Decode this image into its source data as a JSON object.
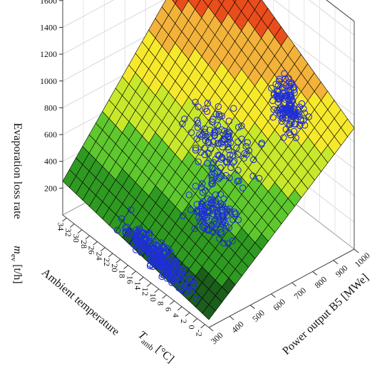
{
  "chart_data": {
    "type": "surface3d",
    "title": "",
    "axes": {
      "z": {
        "label": "Evaporation loss rate",
        "symbol": "m",
        "subscript": "ev",
        "unit": "[t/h]",
        "ticks": [
          200,
          400,
          600,
          800,
          1000,
          1200,
          1400,
          1600
        ],
        "range": [
          0,
          1700
        ]
      },
      "temperature": {
        "label": "Ambient temperature",
        "symbol": "T",
        "subscript": "amb",
        "unit": "[°C]",
        "ticks": [
          -2,
          0,
          2,
          4,
          6,
          8,
          10,
          12,
          14,
          16,
          18,
          20,
          22,
          24,
          26,
          28,
          30,
          32,
          34
        ],
        "range": [
          -3,
          35
        ]
      },
      "power": {
        "label": "Power output  B5 [MWe]",
        "ticks": [
          300,
          400,
          500,
          600,
          700,
          800,
          900,
          1000
        ],
        "range": [
          300,
          1000
        ]
      }
    },
    "surface": {
      "colormap": [
        "#1c5e1c",
        "#2f9a21",
        "#5ec82e",
        "#c7e82b",
        "#f6e92c",
        "#f3b23a",
        "#ea4d1c",
        "#d11312",
        "#8e0a0a"
      ],
      "colorbreaks": [
        0,
        200,
        400,
        600,
        800,
        1000,
        1200,
        1400,
        1600
      ],
      "grid_lines": 22
    },
    "points": {
      "color": "#1f2fd6",
      "marker": "circle",
      "clusters": [
        {
          "power_center": 880,
          "power_spread": 70,
          "temp_center": 8,
          "temp_spread": 6,
          "count": 130
        },
        {
          "power_center": 520,
          "power_spread": 80,
          "temp_center": 8,
          "temp_spread": 7,
          "count": 110
        },
        {
          "power_center": 330,
          "power_spread": 40,
          "temp_center": 12,
          "temp_spread": 12,
          "count": 220
        },
        {
          "power_center": 660,
          "power_spread": 120,
          "temp_center": 14,
          "temp_spread": 10,
          "count": 120
        }
      ]
    }
  }
}
